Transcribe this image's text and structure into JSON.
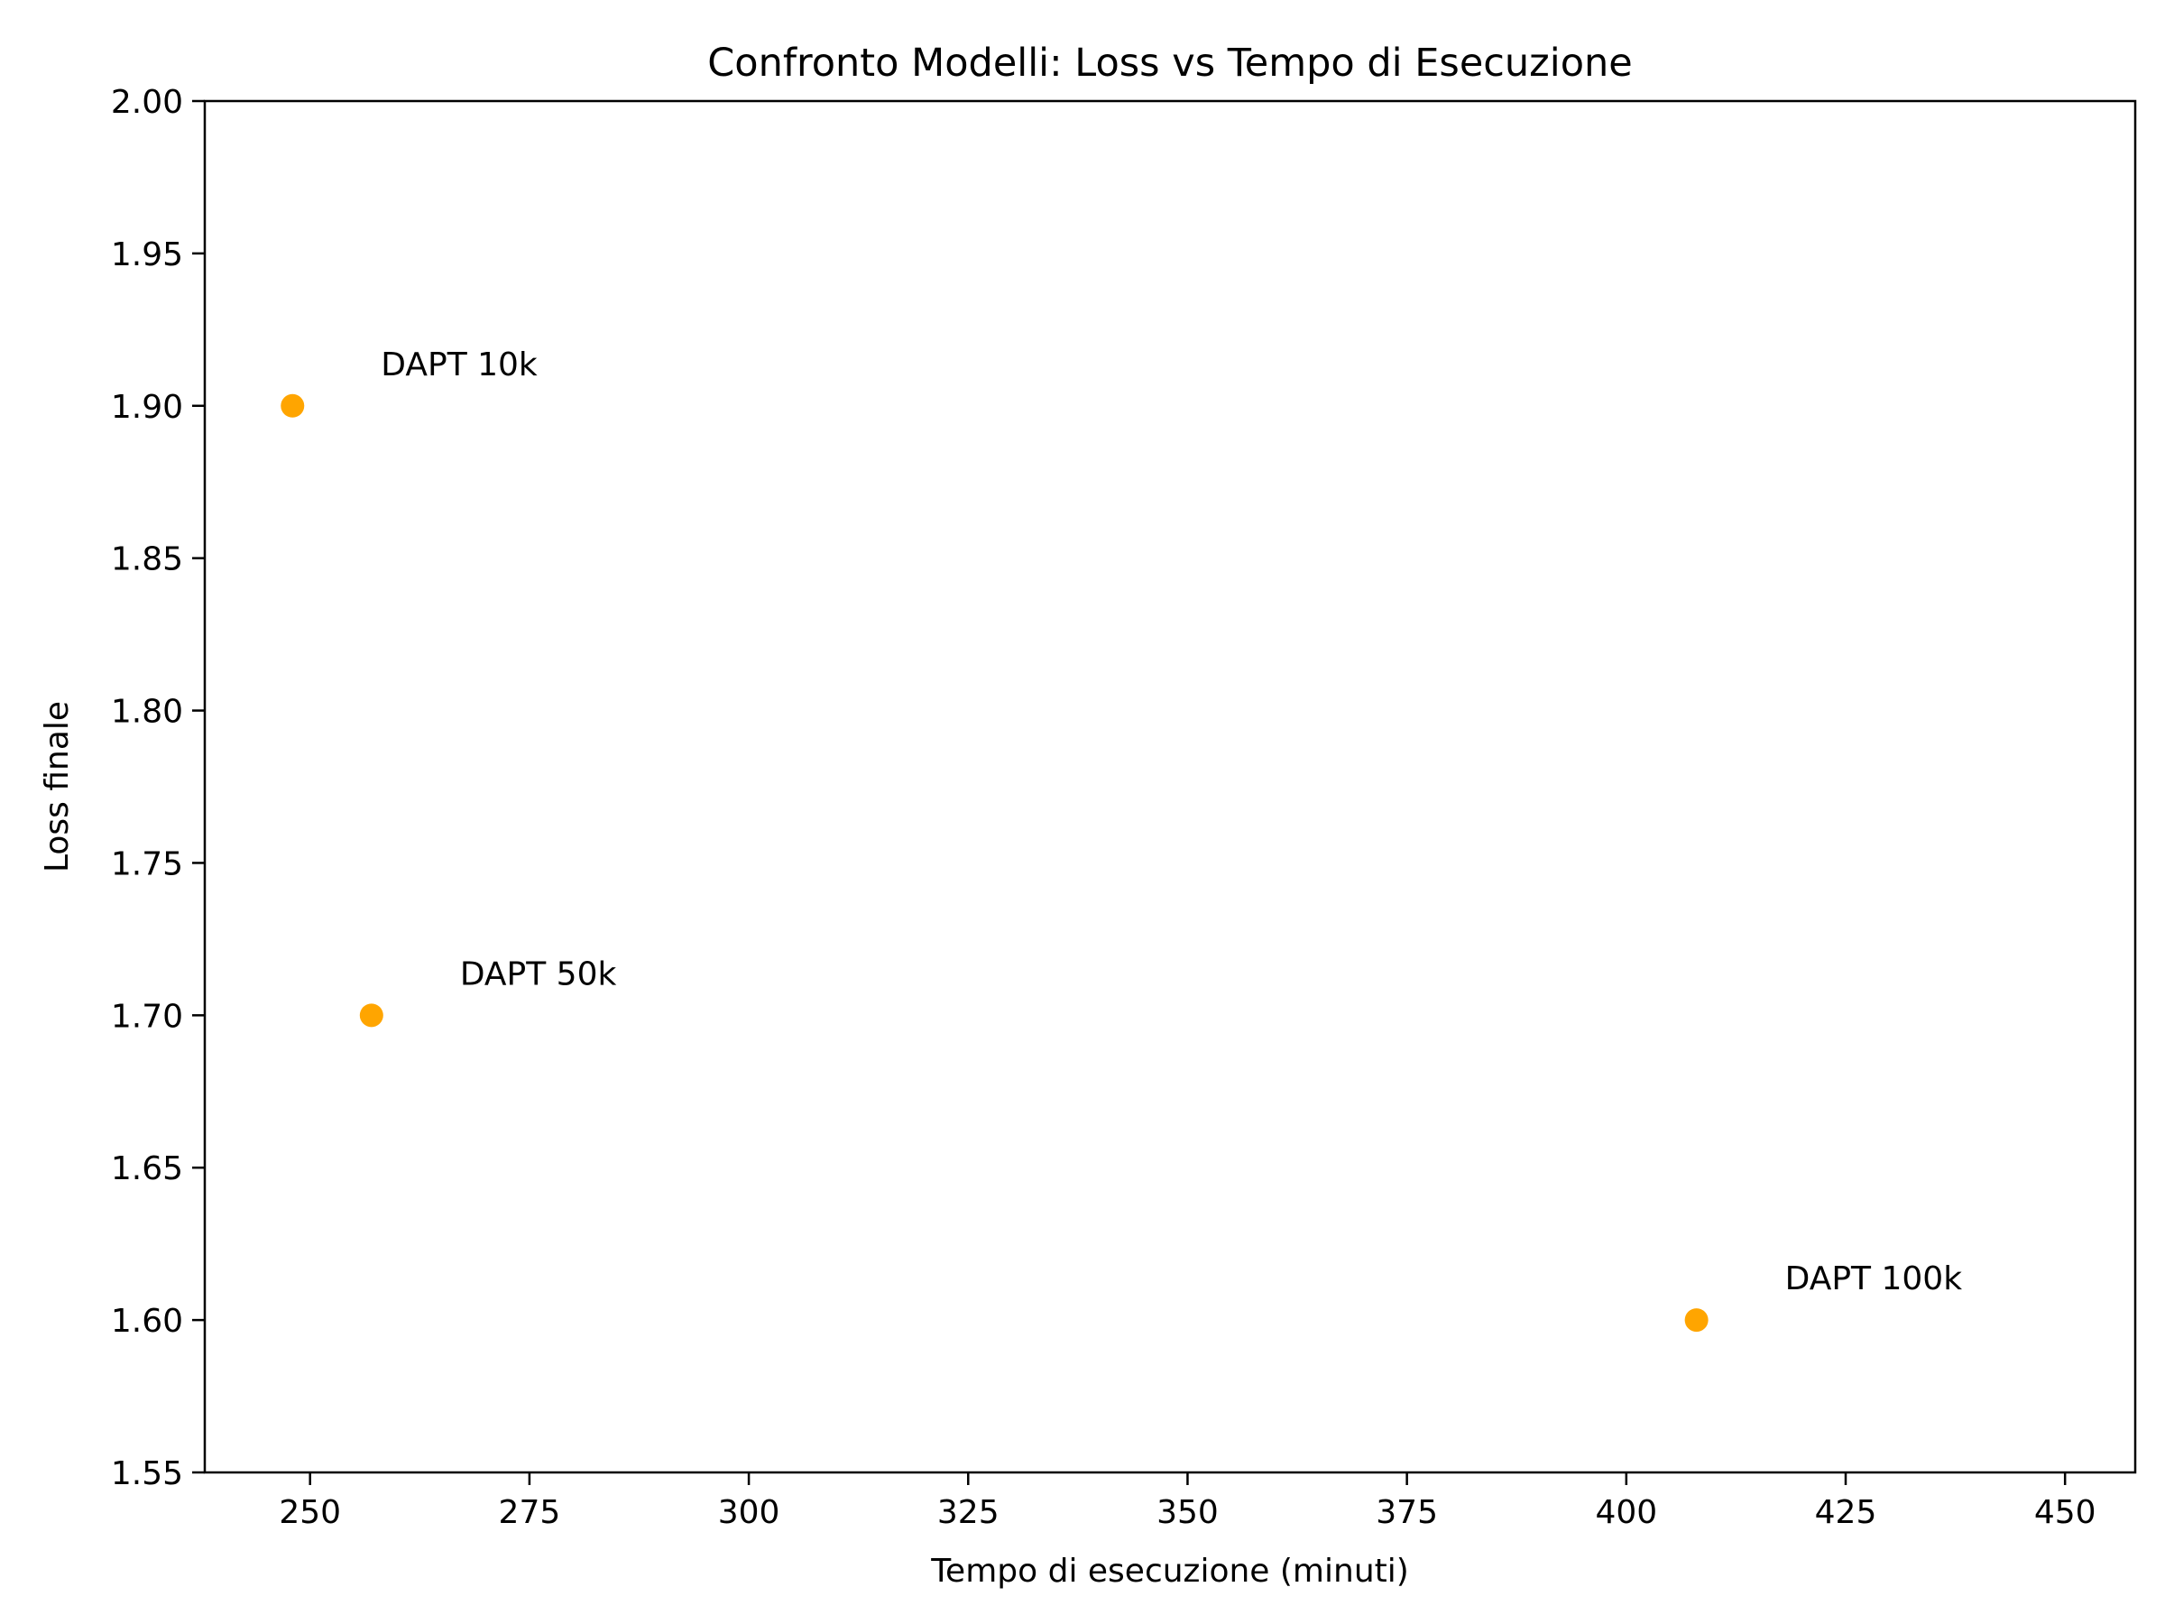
{
  "chart_data": {
    "type": "scatter",
    "title": "Confronto Modelli: Loss vs Tempo di Esecuzione",
    "xlabel": "Tempo di esecuzione (minuti)",
    "ylabel": "Loss finale",
    "xlim": [
      238,
      458
    ],
    "ylim": [
      1.55,
      2.0
    ],
    "xticks": [
      250,
      275,
      300,
      325,
      350,
      375,
      400,
      425,
      450
    ],
    "xtick_labels": [
      "250",
      "275",
      "300",
      "325",
      "350",
      "375",
      "400",
      "425",
      "450"
    ],
    "yticks": [
      1.55,
      1.6,
      1.65,
      1.7,
      1.75,
      1.8,
      1.85,
      1.9,
      1.95,
      2.0
    ],
    "ytick_labels": [
      "1.55",
      "1.60",
      "1.65",
      "1.70",
      "1.75",
      "1.80",
      "1.85",
      "1.90",
      "1.95",
      "2.00"
    ],
    "grid": false,
    "marker_color": "#FFA500",
    "points": [
      {
        "label": "DAPT 10k",
        "x": 248,
        "y": 1.9
      },
      {
        "label": "DAPT 50k",
        "x": 257,
        "y": 1.7
      },
      {
        "label": "DAPT 100k",
        "x": 408,
        "y": 1.6
      }
    ]
  }
}
